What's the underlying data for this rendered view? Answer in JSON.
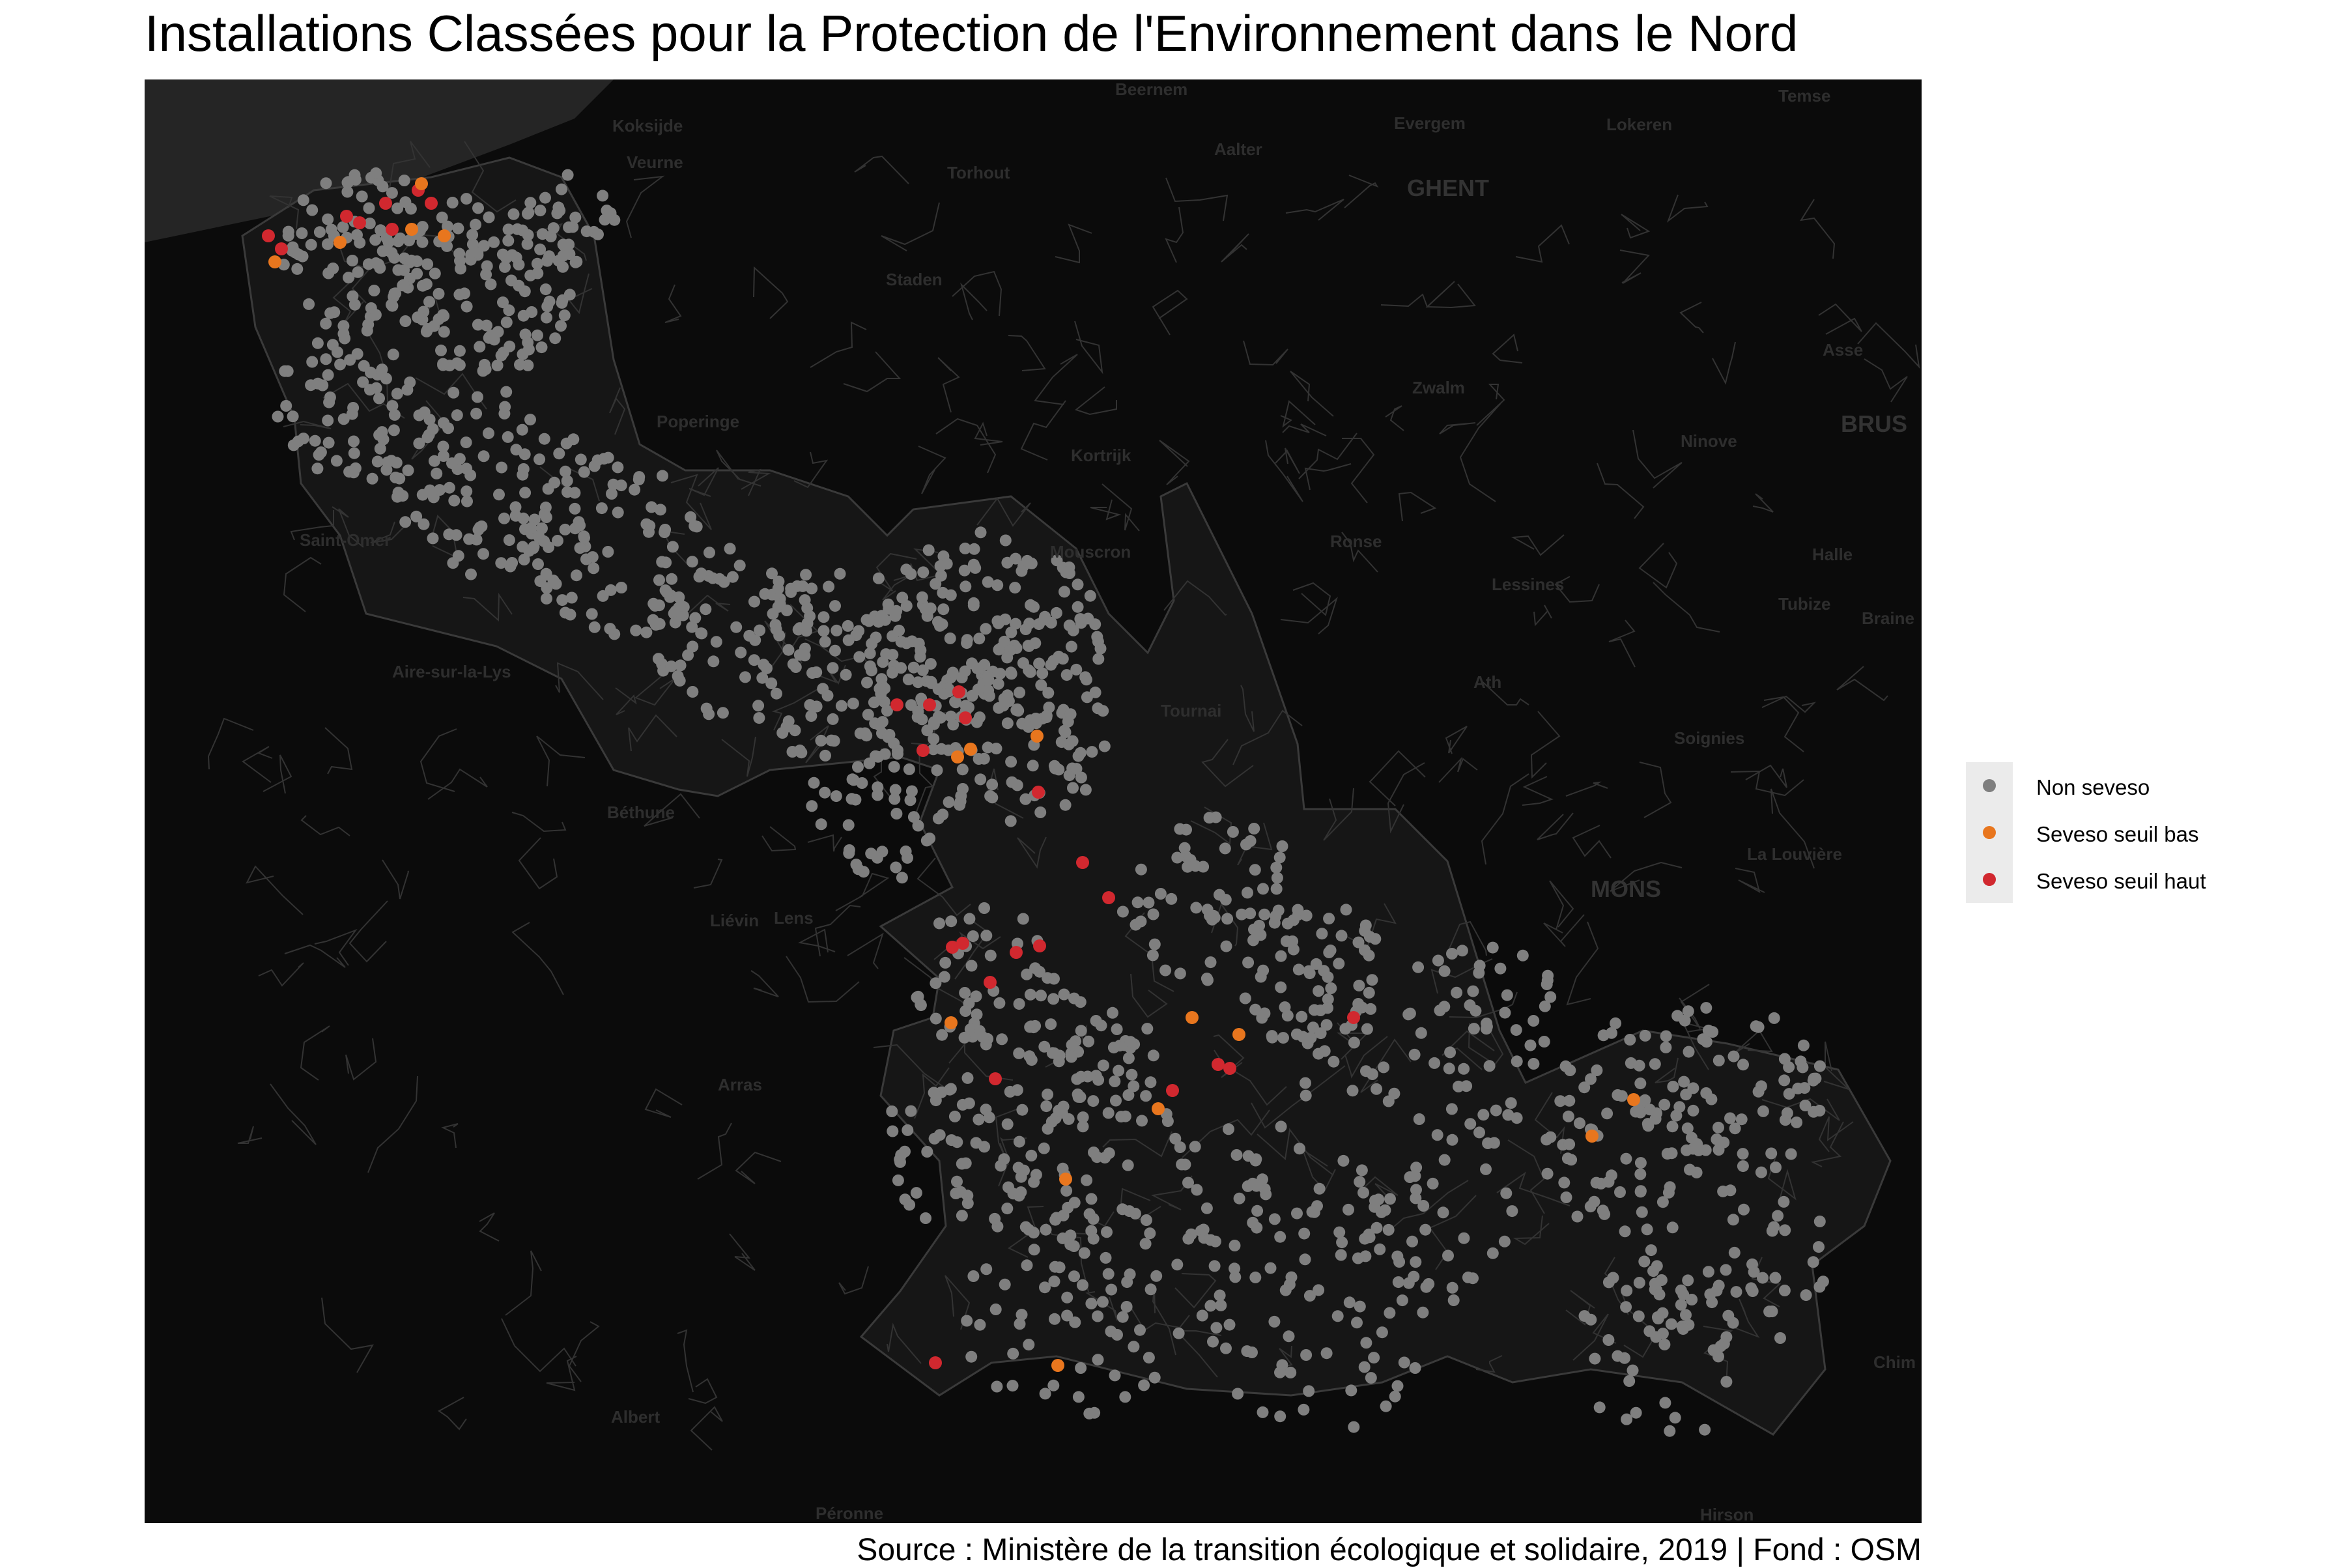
{
  "title": "Installations Classées pour la Protection de l'Environnement dans le Nord",
  "caption": "Source : Ministère de la transition écologique et solidaire, 2019 | Fond : OSM",
  "legend": [
    {
      "label": "Non seveso",
      "color": "#7f7f7f"
    },
    {
      "label": "Seveso seuil bas",
      "color": "#e8761e"
    },
    {
      "label": "Seveso seuil haut",
      "color": "#d1282f"
    }
  ],
  "map": {
    "background": "#0b0b0b",
    "sea_color": "#252525",
    "department_fill": "#161616",
    "commune_border_color": "#3c3c3c",
    "place_labels": [
      "Beernem",
      "Koksijde",
      "Veurne",
      "Torhout",
      "Aalter",
      "Evergem",
      "Lokeren",
      "Temse",
      "GHENT",
      "Staden",
      "Asse",
      "Zwalm",
      "BRUS",
      "Poperinge",
      "Kortrijk",
      "Ninove",
      "Saint-Omer",
      "Mouscron",
      "Ronse",
      "Halle",
      "Lessines",
      "Tubize",
      "Braine",
      "Aire-sur-la-Lys",
      "Tournai",
      "Ath",
      "Soignies",
      "Béthune",
      "La Louvière",
      "MONS",
      "Liévin",
      "Lens",
      "Arras",
      "Albert",
      "Péronne",
      "Hirson",
      "Chim"
    ]
  }
}
